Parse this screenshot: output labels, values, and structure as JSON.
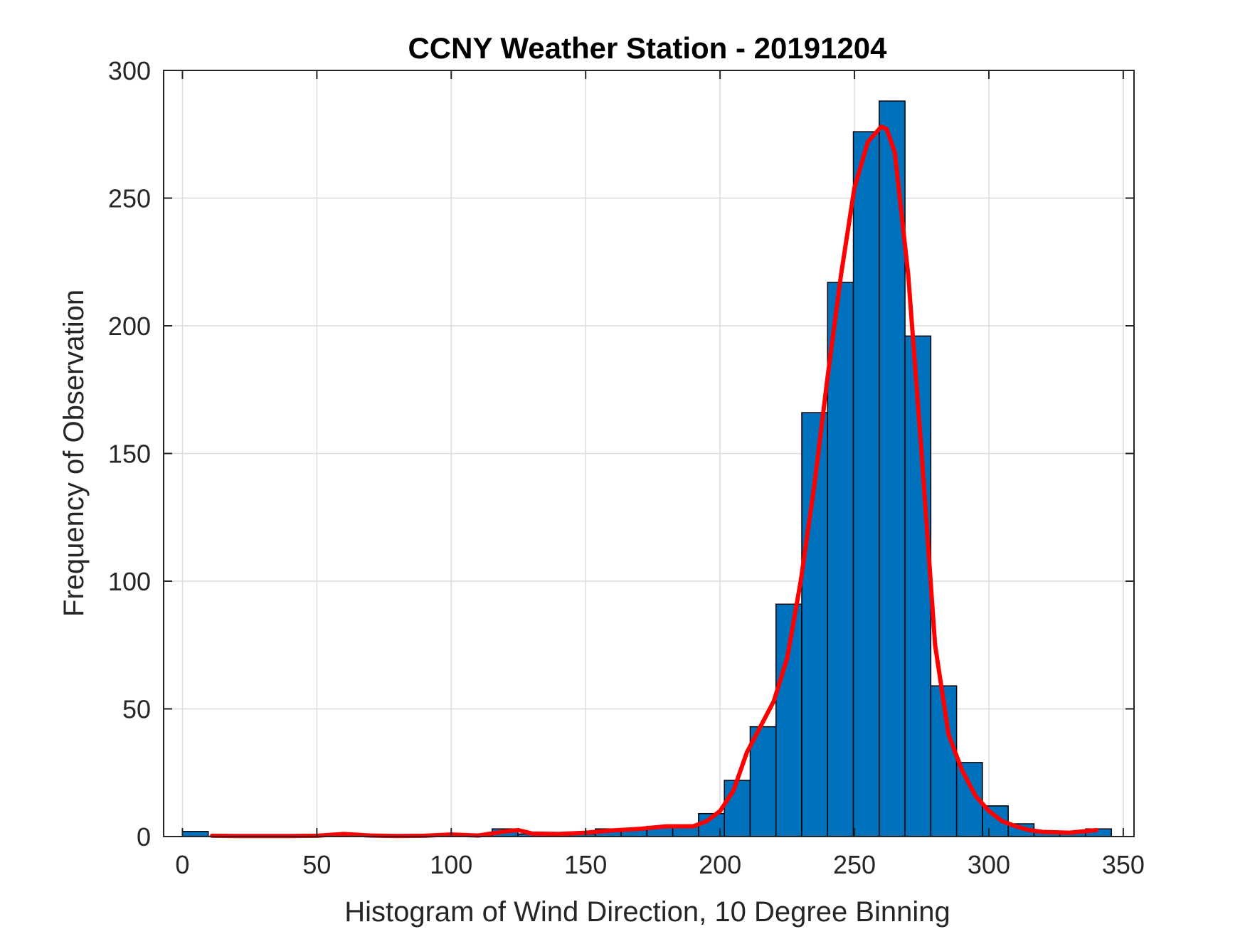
{
  "chart_data": {
    "type": "bar",
    "subtype": "histogram",
    "title": "CCNY Weather Station - 20191204",
    "xlabel": "Histogram of Wind Direction, 10 Degree Binning",
    "ylabel": "Frequency of Observation",
    "xlim": [
      -7,
      354
    ],
    "ylim": [
      0,
      300
    ],
    "xticks": [
      0,
      50,
      100,
      150,
      200,
      250,
      300,
      350
    ],
    "yticks": [
      0,
      50,
      100,
      150,
      200,
      250,
      300
    ],
    "grid": true,
    "bin_width": 9.6,
    "bar_color": "#0072BD",
    "bar_edge_color": "#000000",
    "bins": [
      {
        "start": 0.0,
        "count": 2
      },
      {
        "start": 9.6,
        "count": 0
      },
      {
        "start": 19.2,
        "count": 0
      },
      {
        "start": 28.8,
        "count": 0
      },
      {
        "start": 38.4,
        "count": 0
      },
      {
        "start": 48.0,
        "count": 0
      },
      {
        "start": 57.6,
        "count": 1
      },
      {
        "start": 67.2,
        "count": 0
      },
      {
        "start": 76.8,
        "count": 0
      },
      {
        "start": 86.4,
        "count": 0
      },
      {
        "start": 96.0,
        "count": 1
      },
      {
        "start": 105.6,
        "count": 0
      },
      {
        "start": 115.2,
        "count": 3
      },
      {
        "start": 124.8,
        "count": 1
      },
      {
        "start": 134.4,
        "count": 1
      },
      {
        "start": 144.0,
        "count": 1
      },
      {
        "start": 153.6,
        "count": 3
      },
      {
        "start": 163.2,
        "count": 3
      },
      {
        "start": 172.8,
        "count": 4
      },
      {
        "start": 182.4,
        "count": 4
      },
      {
        "start": 192.0,
        "count": 9
      },
      {
        "start": 201.6,
        "count": 22
      },
      {
        "start": 211.2,
        "count": 43
      },
      {
        "start": 220.8,
        "count": 91
      },
      {
        "start": 230.4,
        "count": 166
      },
      {
        "start": 240.0,
        "count": 217
      },
      {
        "start": 249.6,
        "count": 276
      },
      {
        "start": 259.2,
        "count": 288
      },
      {
        "start": 268.8,
        "count": 196
      },
      {
        "start": 278.4,
        "count": 59
      },
      {
        "start": 288.0,
        "count": 29
      },
      {
        "start": 297.6,
        "count": 12
      },
      {
        "start": 307.2,
        "count": 5
      },
      {
        "start": 316.8,
        "count": 2
      },
      {
        "start": 326.4,
        "count": 2
      },
      {
        "start": 336.0,
        "count": 3
      }
    ],
    "fit_curve": {
      "color": "#FF0000",
      "points": [
        [
          11,
          0.3
        ],
        [
          20,
          0.2
        ],
        [
          30,
          0.2
        ],
        [
          40,
          0.2
        ],
        [
          50,
          0.3
        ],
        [
          60,
          1.0
        ],
        [
          70,
          0.4
        ],
        [
          80,
          0.2
        ],
        [
          90,
          0.3
        ],
        [
          100,
          0.8
        ],
        [
          110,
          0.4
        ],
        [
          120,
          2.0
        ],
        [
          125,
          2.5
        ],
        [
          130,
          1.2
        ],
        [
          140,
          1.0
        ],
        [
          150,
          1.5
        ],
        [
          160,
          2.4
        ],
        [
          170,
          3.0
        ],
        [
          180,
          4.0
        ],
        [
          190,
          4.0
        ],
        [
          195,
          6.0
        ],
        [
          200,
          10
        ],
        [
          205,
          18
        ],
        [
          210,
          33
        ],
        [
          215,
          43
        ],
        [
          220,
          53
        ],
        [
          225,
          70
        ],
        [
          230,
          100
        ],
        [
          235,
          137
        ],
        [
          240,
          180
        ],
        [
          245,
          220
        ],
        [
          250,
          254
        ],
        [
          255,
          272
        ],
        [
          260,
          278
        ],
        [
          262,
          277
        ],
        [
          265,
          268
        ],
        [
          270,
          220
        ],
        [
          275,
          150
        ],
        [
          280,
          75
        ],
        [
          285,
          40
        ],
        [
          290,
          26
        ],
        [
          295,
          16
        ],
        [
          300,
          10
        ],
        [
          305,
          6
        ],
        [
          310,
          4
        ],
        [
          315,
          2.5
        ],
        [
          320,
          1.8
        ],
        [
          330,
          1.5
        ],
        [
          340,
          2.5
        ]
      ]
    }
  }
}
